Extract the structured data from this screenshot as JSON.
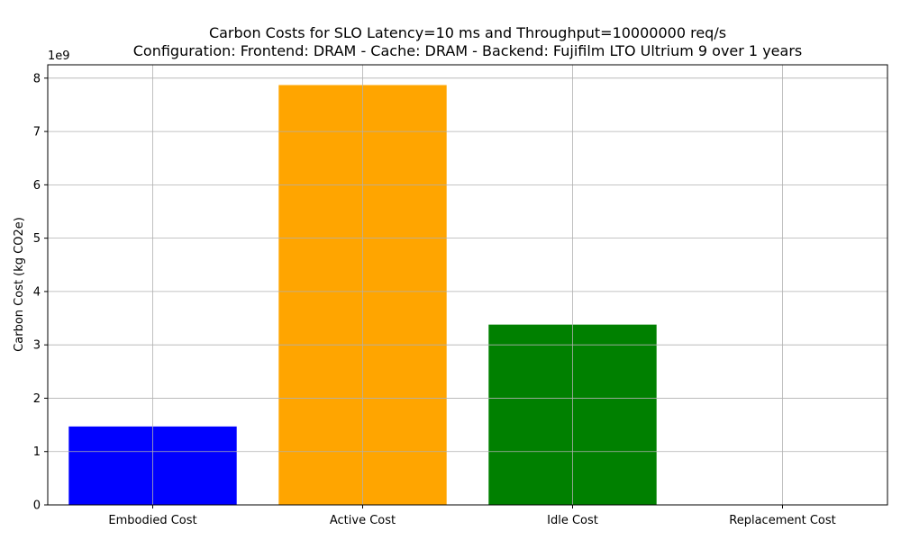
{
  "chart_data": {
    "type": "bar",
    "title": "Carbon Costs for SLO Latency=10 ms and Throughput=10000000 req/s",
    "subtitle": "Configuration: Frontend: DRAM - Cache: DRAM - Backend: Fujifilm LTO Ultrium 9 over 1 years",
    "xlabel": "",
    "ylabel": "Carbon Cost (kg CO2e)",
    "y_offset_label": "1e9",
    "y_scale": 1000000000,
    "categories": [
      "Embodied Cost",
      "Active Cost",
      "Idle Cost",
      "Replacement Cost"
    ],
    "values": [
      1470000000,
      7870000000,
      3380000000,
      0
    ],
    "colors": [
      "#0000ff",
      "#ffa500",
      "#008000",
      "#ff0000"
    ],
    "ylim": [
      0,
      8250000000
    ],
    "yticks": [
      0,
      1,
      2,
      3,
      4,
      5,
      6,
      7,
      8
    ],
    "grid": true
  }
}
